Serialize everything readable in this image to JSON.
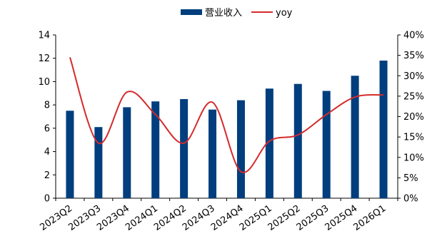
{
  "chart_data": {
    "type": "bar",
    "legend_position": "top-center",
    "categories": [
      "2023Q2",
      "2023Q3",
      "2023Q4",
      "2024Q1",
      "2024Q2",
      "2024Q3",
      "2024Q4",
      "2025Q1",
      "2025Q2",
      "2025Q3",
      "2025Q4",
      "2026Q1"
    ],
    "series": [
      {
        "name": "营业收入",
        "type": "bar",
        "axis": "left",
        "color": "#003e7e",
        "values": [
          7.5,
          6.1,
          7.8,
          8.3,
          8.5,
          7.6,
          8.4,
          9.4,
          9.8,
          9.2,
          10.5,
          11.8
        ]
      },
      {
        "name": "yoy",
        "type": "line",
        "axis": "right",
        "color": "#d52b2b",
        "values": [
          34.5,
          13.5,
          26.0,
          20.5,
          13.5,
          23.5,
          6.5,
          14.0,
          15.5,
          20.5,
          24.8,
          25.3
        ]
      }
    ],
    "y_left": {
      "lim": [
        0,
        14
      ],
      "ticks": [
        0,
        2,
        4,
        6,
        8,
        10,
        12,
        14
      ],
      "tick_labels": [
        "0",
        "2",
        "4",
        "6",
        "8",
        "10",
        "12",
        "14"
      ]
    },
    "y_right": {
      "lim": [
        0,
        40
      ],
      "ticks": [
        0,
        5,
        10,
        15,
        20,
        25,
        30,
        35,
        40
      ],
      "tick_labels": [
        "0%",
        "5%",
        "10%",
        "15%",
        "20%",
        "25%",
        "30%",
        "35%",
        "40%"
      ]
    },
    "grid": false
  }
}
